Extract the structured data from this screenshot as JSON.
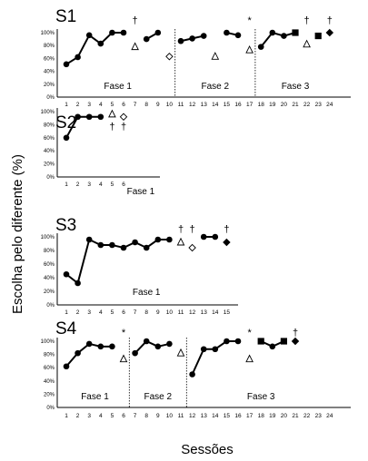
{
  "figure": {
    "ylabel": "Escolha pelo diferente (%)",
    "xlabel": "Sessões"
  },
  "chart_data": [
    {
      "type": "line",
      "panel": "S1",
      "ylim": [
        0,
        100
      ],
      "ytick_labels": [
        "0%",
        "20%",
        "40%",
        "60%",
        "80%",
        "100%"
      ],
      "xticks": [
        1,
        2,
        3,
        4,
        5,
        6,
        7,
        8,
        9,
        10,
        11,
        12,
        13,
        14,
        15,
        16,
        17,
        18,
        19,
        20,
        21,
        22,
        23,
        24
      ],
      "line_segments": [
        {
          "x": [
            1,
            2,
            3,
            4,
            5,
            6
          ],
          "y": [
            51,
            62,
            96,
            83,
            100,
            100
          ]
        },
        {
          "x": [
            8,
            9
          ],
          "y": [
            90,
            100
          ]
        },
        {
          "x": [
            11,
            12,
            13
          ],
          "y": [
            87,
            91,
            95
          ]
        },
        {
          "x": [
            15,
            16
          ],
          "y": [
            100,
            96
          ]
        },
        {
          "x": [
            18,
            19,
            20,
            21
          ],
          "y": [
            78,
            100,
            95,
            100
          ]
        }
      ],
      "markers": [
        {
          "x": 7,
          "y": 78,
          "shape": "triangle"
        },
        {
          "x": 10,
          "y": 63,
          "shape": "diamond-open"
        },
        {
          "x": 14,
          "y": 63,
          "shape": "triangle"
        },
        {
          "x": 17,
          "y": 73,
          "shape": "triangle"
        },
        {
          "x": 21,
          "y": 100,
          "shape": "square"
        },
        {
          "x": 22,
          "y": 82,
          "shape": "triangle"
        },
        {
          "x": 23,
          "y": 95,
          "shape": "square"
        },
        {
          "x": 24,
          "y": 100,
          "shape": "diamond"
        }
      ],
      "annotations": [
        {
          "x": 7,
          "text": "†"
        },
        {
          "x": 17,
          "text": "*"
        },
        {
          "x": 22,
          "text": "†"
        },
        {
          "x": 24,
          "text": "†"
        }
      ],
      "phase_dividers": [
        10.5,
        17.5
      ],
      "phases": [
        {
          "label": "Fase 1",
          "x": 5.5
        },
        {
          "label": "Fase 2",
          "x": 14
        },
        {
          "label": "Fase 3",
          "x": 21
        }
      ]
    },
    {
      "type": "line",
      "panel": "S2",
      "ylim": [
        0,
        100
      ],
      "ytick_labels": [
        "0%",
        "20%",
        "40%",
        "60%",
        "80%",
        "100%"
      ],
      "xticks": [
        1,
        2,
        3,
        4,
        5,
        6
      ],
      "line_segments": [
        {
          "x": [
            1,
            2,
            3,
            4
          ],
          "y": [
            60,
            92,
            92,
            92
          ]
        }
      ],
      "markers": [
        {
          "x": 5,
          "y": 96,
          "shape": "triangle"
        },
        {
          "x": 6,
          "y": 92,
          "shape": "diamond-open"
        }
      ],
      "annotations": [
        {
          "x": 5,
          "text": "†"
        },
        {
          "x": 6,
          "text": "†"
        }
      ],
      "phase_dividers": [],
      "phases": [
        {
          "label": "Fase 1",
          "x": 7.5
        }
      ]
    },
    {
      "type": "line",
      "panel": "S3",
      "ylim": [
        0,
        100
      ],
      "ytick_labels": [
        "0%",
        "20%",
        "40%",
        "60%",
        "80%",
        "100%"
      ],
      "xticks": [
        1,
        2,
        3,
        4,
        5,
        6,
        7,
        8,
        9,
        10,
        11,
        12,
        13,
        14,
        15
      ],
      "line_segments": [
        {
          "x": [
            1,
            2,
            3,
            4,
            5,
            6,
            7,
            8,
            9,
            10
          ],
          "y": [
            45,
            32,
            96,
            88,
            88,
            84,
            92,
            84,
            96,
            96
          ]
        },
        {
          "x": [
            13,
            14
          ],
          "y": [
            100,
            100
          ]
        }
      ],
      "markers": [
        {
          "x": 11,
          "y": 92,
          "shape": "triangle"
        },
        {
          "x": 12,
          "y": 84,
          "shape": "diamond-open"
        },
        {
          "x": 15,
          "y": 92,
          "shape": "diamond"
        }
      ],
      "annotations": [
        {
          "x": 11,
          "text": "†"
        },
        {
          "x": 12,
          "text": "†"
        },
        {
          "x": 15,
          "text": "†"
        }
      ],
      "phase_dividers": [],
      "phases": [
        {
          "label": "Fase 1",
          "x": 8
        }
      ]
    },
    {
      "type": "line",
      "panel": "S4",
      "ylim": [
        0,
        100
      ],
      "ytick_labels": [
        "0%",
        "20%",
        "40%",
        "60%",
        "80%",
        "100%"
      ],
      "xticks": [
        1,
        2,
        3,
        4,
        5,
        6,
        7,
        8,
        9,
        10,
        11,
        12,
        13,
        14,
        15,
        16,
        17,
        18,
        19,
        20,
        21,
        22,
        23,
        24
      ],
      "line_segments": [
        {
          "x": [
            1,
            2,
            3,
            4,
            5
          ],
          "y": [
            62,
            82,
            96,
            92,
            92
          ]
        },
        {
          "x": [
            7,
            8,
            9,
            10
          ],
          "y": [
            82,
            100,
            92,
            96
          ]
        },
        {
          "x": [
            12,
            13,
            14,
            15,
            16
          ],
          "y": [
            50,
            88,
            88,
            100,
            100
          ]
        },
        {
          "x": [
            18,
            19,
            20
          ],
          "y": [
            100,
            92,
            100
          ]
        }
      ],
      "markers": [
        {
          "x": 6,
          "y": 73,
          "shape": "triangle"
        },
        {
          "x": 11,
          "y": 82,
          "shape": "triangle"
        },
        {
          "x": 17,
          "y": 73,
          "shape": "triangle"
        },
        {
          "x": 18,
          "y": 100,
          "shape": "square"
        },
        {
          "x": 20,
          "y": 100,
          "shape": "square"
        },
        {
          "x": 21,
          "y": 100,
          "shape": "diamond"
        }
      ],
      "annotations": [
        {
          "x": 6,
          "text": "*"
        },
        {
          "x": 17,
          "text": "*"
        },
        {
          "x": 21,
          "text": "†"
        }
      ],
      "phase_dividers": [
        6.5,
        11.5
      ],
      "phases": [
        {
          "label": "Fase 1",
          "x": 3.5
        },
        {
          "label": "Fase 2",
          "x": 9
        },
        {
          "label": "Fase 3",
          "x": 18
        }
      ]
    }
  ]
}
